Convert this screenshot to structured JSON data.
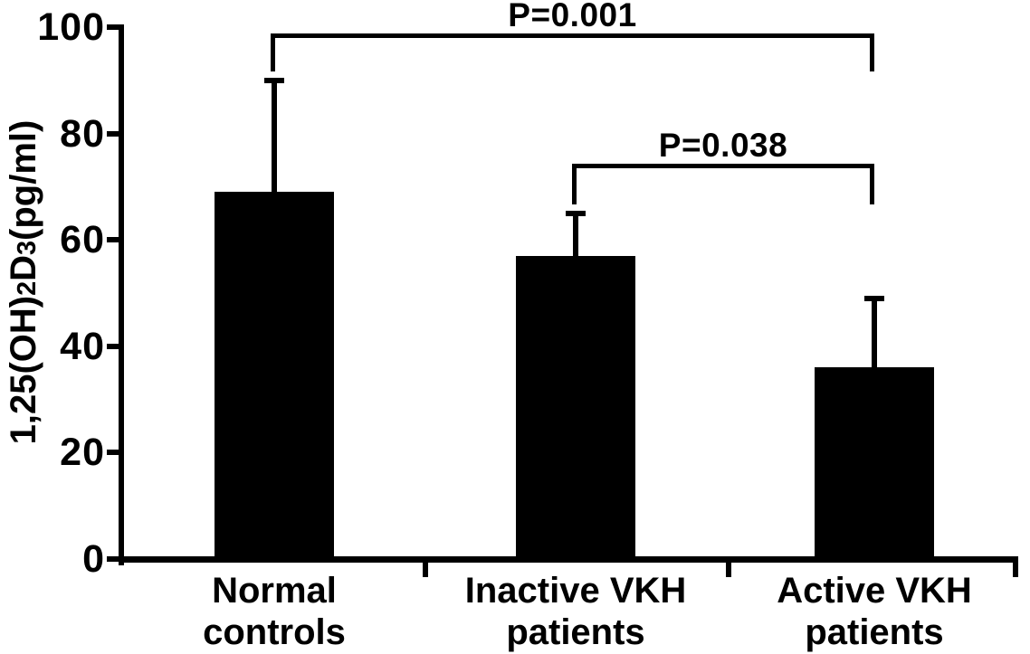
{
  "figure": {
    "background": "#ffffff",
    "ink_color": "#000000"
  },
  "chart_data": {
    "type": "bar",
    "title": "",
    "xlabel": "",
    "ylabel": "1,25(OH)2D3(pg/ml)",
    "ylabel_segments": [
      {
        "text": "1,25(OH)"
      },
      {
        "text": "2",
        "sub": true
      },
      {
        "text": "D"
      },
      {
        "text": "3",
        "sub": true
      },
      {
        "text": "(pg/ml)"
      }
    ],
    "categories": [
      [
        "Normal",
        "controls"
      ],
      [
        "Inactive VKH",
        "patients"
      ],
      [
        "Active VKH",
        "patients"
      ]
    ],
    "values": [
      69,
      57,
      36
    ],
    "error_upper": [
      90,
      65,
      49
    ],
    "ylim": [
      0,
      100
    ],
    "yticks": [
      0,
      20,
      40,
      60,
      80,
      100
    ],
    "grid": false,
    "legend": null,
    "bar_color": "#000000",
    "significance_annotations": [
      {
        "from_category": 0,
        "to_category": 2,
        "label": "P=0.001"
      },
      {
        "from_category": 1,
        "to_category": 2,
        "label": "P=0.038"
      }
    ]
  }
}
